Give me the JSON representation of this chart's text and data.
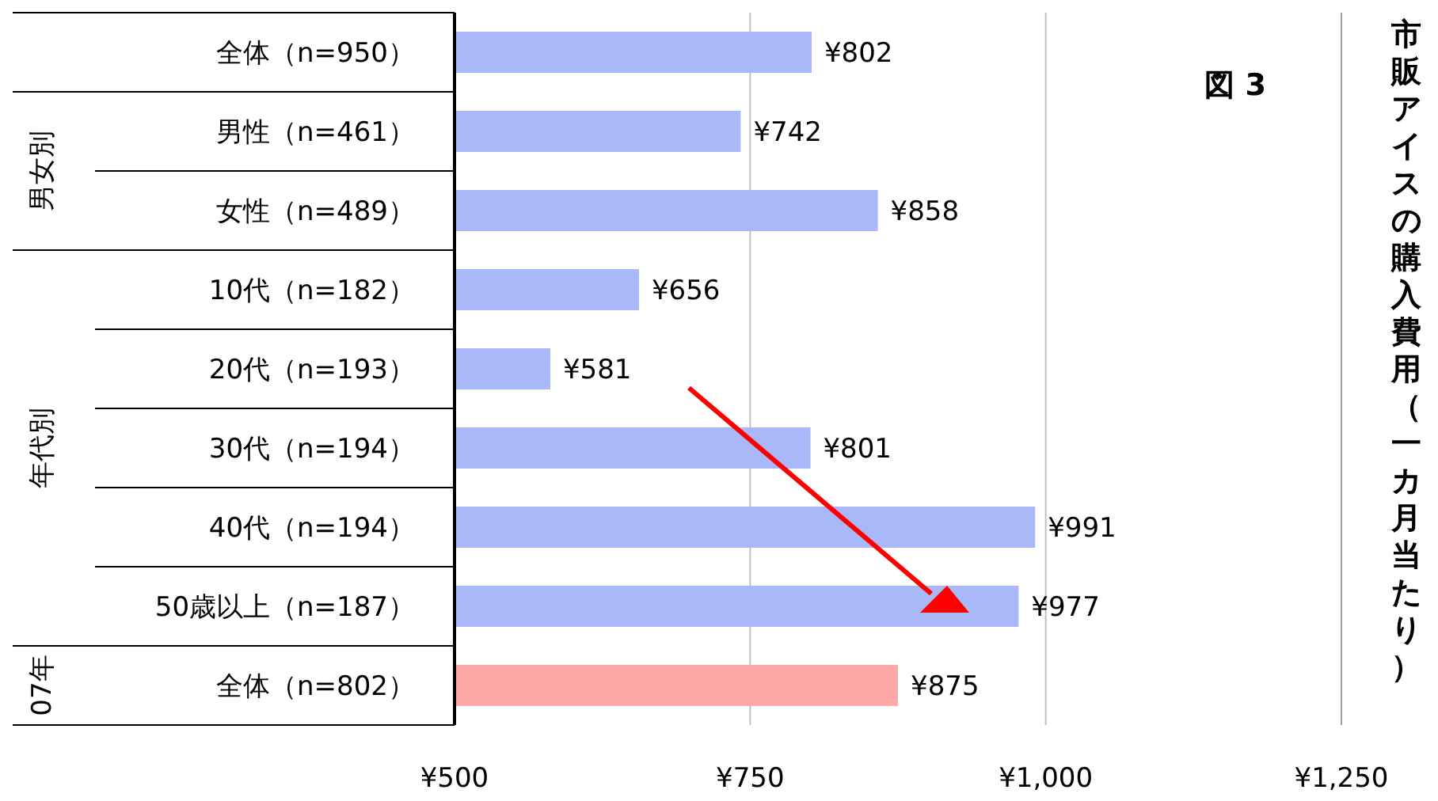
{
  "chart_data": {
    "type": "bar",
    "orientation": "horizontal",
    "title": "市販アイスの購入費用（一カ月当たり）",
    "categories": [
      "全体（n=950）",
      "男性（n=461）",
      "女性（n=489）",
      "10代（n=182）",
      "20代（n=193）",
      "30代（n=194）",
      "40代（n=194）",
      "50歳以上（n=187）",
      "全体（n=802）"
    ],
    "values": [
      802,
      742,
      858,
      656,
      581,
      801,
      991,
      977,
      875
    ],
    "value_labels": [
      "¥802",
      "¥742",
      "¥858",
      "¥656",
      "¥581",
      "¥801",
      "¥991",
      "¥977",
      "¥875"
    ],
    "colors": [
      "#a8b8f8",
      "#a8b8f8",
      "#a8b8f8",
      "#a8b8f8",
      "#a8b8f8",
      "#a8b8f8",
      "#a8b8f8",
      "#a8b8f8",
      "#ffa8a8"
    ],
    "xlim": [
      500,
      1250
    ],
    "xticks": [
      {
        "value": 500,
        "label": "¥500"
      },
      {
        "value": 750,
        "label": "¥750"
      },
      {
        "value": 1000,
        "label": "¥1,000"
      },
      {
        "value": 1250,
        "label": "¥1,250"
      }
    ],
    "grid": "x",
    "annotations": [
      "男女別",
      "年代別",
      "07年",
      "図 3"
    ]
  }
}
